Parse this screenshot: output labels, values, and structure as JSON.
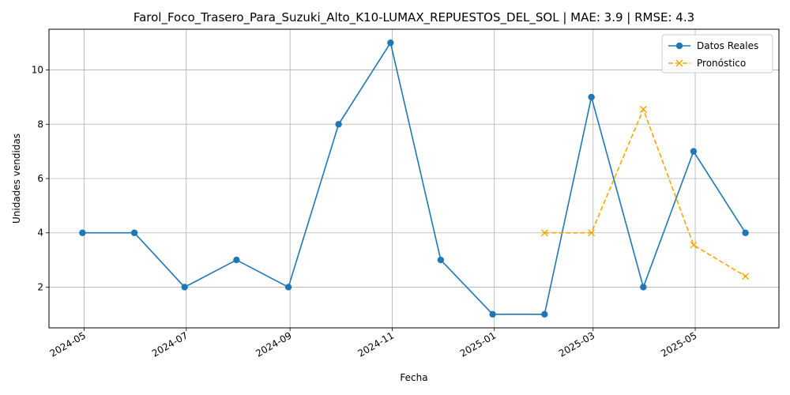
{
  "chart_data": {
    "type": "line",
    "title": "Farol_Foco_Trasero_Para_Suzuki_Alto_K10-LUMAX_REPUESTOS_DEL_SOL | MAE: 3.9 | RMSE: 4.3",
    "xlabel": "Fecha",
    "ylabel": "Unidades vendidas",
    "x_ticks": [
      "2024-05",
      "2024-07",
      "2024-09",
      "2024-11",
      "2025-01",
      "2025-03",
      "2025-05"
    ],
    "y_ticks": [
      2,
      4,
      6,
      8,
      10
    ],
    "xlim": [
      "2024-04-10",
      "2025-06-20"
    ],
    "ylim": [
      0.5,
      11.5
    ],
    "grid": true,
    "legend_position": "top-right",
    "series": [
      {
        "name": "Datos Reales",
        "color": "#1f77b4",
        "style": "solid",
        "marker": "circle",
        "x": [
          "2024-04-30",
          "2024-05-31",
          "2024-06-30",
          "2024-07-31",
          "2024-08-31",
          "2024-09-30",
          "2024-10-31",
          "2024-11-30",
          "2024-12-31",
          "2025-01-31",
          "2025-02-28",
          "2025-03-31",
          "2025-04-30",
          "2025-05-31"
        ],
        "values": [
          4,
          4,
          2,
          3,
          2,
          8,
          11,
          3,
          1,
          1,
          9,
          2,
          7,
          4
        ]
      },
      {
        "name": "Pronóstico",
        "color": "#ffa500",
        "style": "dashed",
        "marker": "x",
        "x": [
          "2025-01-31",
          "2025-02-28",
          "2025-03-31",
          "2025-04-30",
          "2025-05-31"
        ],
        "values": [
          4.0,
          4.0,
          8.55,
          3.55,
          2.4
        ]
      }
    ]
  }
}
